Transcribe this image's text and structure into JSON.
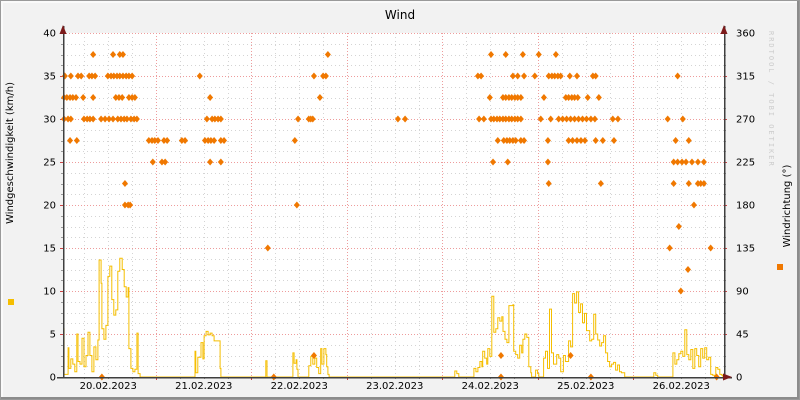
{
  "title": "Wind",
  "watermark": "RRDTOOL / TOBI OETIKER",
  "colors": {
    "background": "#f2f2f2",
    "plot_background": "#ffffff",
    "speed": "#f5be00",
    "direction": "#f07800",
    "grid_major": "#ee9c9c",
    "grid_minor": "#d4d4d4",
    "axis": "#3f3f3f",
    "arrow": "#7c1a1a",
    "tick_major": "#cc4444",
    "tick_minor": "#9a9a9a",
    "watermark_color": "#cccccc"
  },
  "chart_data": {
    "type": "step-line + scatter (dual axis)",
    "title": "Wind",
    "x_axis": {
      "unit": "time",
      "day_labels": [
        "20.02.2023",
        "21.02.2023",
        "22.02.2023",
        "23.02.2023",
        "24.02.2023",
        "25.02.2023",
        "26.02.2023"
      ],
      "hours_range": [
        0.6,
        166.7
      ],
      "minor_grid_hours": 6,
      "major_grid_hours": 24
    },
    "left_axis": {
      "label": "Windgeschwindigkeit (km/h)",
      "range": [
        0,
        40
      ],
      "ticks": [
        0,
        5,
        10,
        15,
        20,
        25,
        30,
        35,
        40
      ],
      "minor_step": 1.25
    },
    "right_axis": {
      "label": "Windrichtung (°)",
      "range": [
        0,
        360
      ],
      "ticks": [
        0,
        45,
        90,
        135,
        180,
        225,
        270,
        315,
        360
      ],
      "minor_step": 11.25
    },
    "series": [
      {
        "name": "Windgeschwindigkeit",
        "type": "step-line",
        "unit": "km/h",
        "color": "#f5be00",
        "points_hours_value": [
          [
            0.6,
            5.6
          ],
          [
            0.9,
            0.3
          ],
          [
            1.6,
            0.3
          ],
          [
            1.9,
            3.4
          ],
          [
            2.1,
            1.0
          ],
          [
            2.6,
            2.1
          ],
          [
            3.1,
            1.5
          ],
          [
            3.6,
            0.6
          ],
          [
            4.1,
            5.0
          ],
          [
            4.4,
            1.8
          ],
          [
            4.9,
            1.5
          ],
          [
            5.4,
            4.5
          ],
          [
            5.9,
            1.2
          ],
          [
            6.4,
            2.5
          ],
          [
            6.9,
            5.2
          ],
          [
            7.4,
            2.5
          ],
          [
            7.9,
            0.6
          ],
          [
            8.4,
            3.5
          ],
          [
            8.9,
            2.0
          ],
          [
            9.4,
            4.3
          ],
          [
            9.7,
            13.6
          ],
          [
            10.2,
            10.9
          ],
          [
            10.4,
            5.6
          ],
          [
            10.9,
            4.4
          ],
          [
            11.4,
            6.0
          ],
          [
            11.9,
            11.7
          ],
          [
            12.4,
            12.9
          ],
          [
            12.9,
            9.0
          ],
          [
            13.4,
            7.2
          ],
          [
            13.9,
            7.8
          ],
          [
            14.4,
            12.3
          ],
          [
            14.9,
            13.8
          ],
          [
            15.5,
            12.5
          ],
          [
            16.0,
            10.5
          ],
          [
            16.5,
            9.3
          ],
          [
            17.0,
            10.4
          ],
          [
            17.2,
            3.3
          ],
          [
            17.7,
            1.0
          ],
          [
            18.2,
            0.6
          ],
          [
            18.7,
            0.9
          ],
          [
            19.2,
            5.1
          ],
          [
            19.5,
            0.4
          ],
          [
            20.0,
            0
          ],
          [
            33.5,
            0
          ],
          [
            33.8,
            3.0
          ],
          [
            34.0,
            0.5
          ],
          [
            34.5,
            2.3
          ],
          [
            35.0,
            2.3
          ],
          [
            35.3,
            4.0
          ],
          [
            35.8,
            2.1
          ],
          [
            36.1,
            4.8
          ],
          [
            36.6,
            5.3
          ],
          [
            37.1,
            4.9
          ],
          [
            37.6,
            5.1
          ],
          [
            38.1,
            4.8
          ],
          [
            38.6,
            4.2
          ],
          [
            39.1,
            4.2
          ],
          [
            39.6,
            4.2
          ],
          [
            40.1,
            1.0
          ],
          [
            40.3,
            0
          ],
          [
            51.4,
            0
          ],
          [
            51.6,
            1.9
          ],
          [
            51.9,
            0
          ],
          [
            58.2,
            0
          ],
          [
            58.4,
            2.8
          ],
          [
            58.7,
            1.6
          ],
          [
            59.2,
            2.0
          ],
          [
            59.4,
            0.9
          ],
          [
            59.7,
            0
          ],
          [
            62.2,
            0
          ],
          [
            62.4,
            1.3
          ],
          [
            62.9,
            2.4
          ],
          [
            63.4,
            1.5
          ],
          [
            63.9,
            2.2
          ],
          [
            64.4,
            1.1
          ],
          [
            64.9,
            0.4
          ],
          [
            65.4,
            3.3
          ],
          [
            65.7,
            1.5
          ],
          [
            66.2,
            3.3
          ],
          [
            66.7,
            2.6
          ],
          [
            66.9,
            1.2
          ],
          [
            67.2,
            0.3
          ],
          [
            67.5,
            0
          ],
          [
            98.6,
            0
          ],
          [
            99.1,
            0.7
          ],
          [
            99.6,
            0.4
          ],
          [
            100.1,
            0
          ],
          [
            103.6,
            0
          ],
          [
            103.9,
            1.0
          ],
          [
            104.4,
            0.6
          ],
          [
            104.9,
            1.1
          ],
          [
            105.4,
            1.8
          ],
          [
            105.9,
            1.2
          ],
          [
            106.1,
            3.0
          ],
          [
            106.6,
            2.2
          ],
          [
            107.1,
            1.5
          ],
          [
            107.4,
            3.3
          ],
          [
            107.9,
            2.4
          ],
          [
            108.4,
            9.4
          ],
          [
            108.9,
            5.2
          ],
          [
            109.4,
            5.6
          ],
          [
            109.9,
            6.9
          ],
          [
            110.4,
            6.5
          ],
          [
            110.9,
            7.0
          ],
          [
            111.2,
            5.3
          ],
          [
            111.7,
            4.4
          ],
          [
            112.2,
            4.0
          ],
          [
            112.7,
            8.3
          ],
          [
            113.2,
            8.3
          ],
          [
            113.7,
            8.4
          ],
          [
            113.9,
            3.0
          ],
          [
            114.4,
            2.6
          ],
          [
            114.9,
            2.2
          ],
          [
            115.4,
            3.7
          ],
          [
            115.9,
            2.8
          ],
          [
            116.2,
            4.4
          ],
          [
            116.7,
            5.0
          ],
          [
            117.2,
            4.6
          ],
          [
            117.7,
            1.2
          ],
          [
            118.2,
            0.5
          ],
          [
            118.4,
            0
          ],
          [
            119.4,
            0.8
          ],
          [
            119.9,
            0.4
          ],
          [
            120.2,
            0
          ],
          [
            121.4,
            2.2
          ],
          [
            121.9,
            3.0
          ],
          [
            122.4,
            1.0
          ],
          [
            122.9,
            7.9
          ],
          [
            123.4,
            2.8
          ],
          [
            123.9,
            1.5
          ],
          [
            124.7,
            2.6
          ],
          [
            125.2,
            2.2
          ],
          [
            125.7,
            0.6
          ],
          [
            126.4,
            2.5
          ],
          [
            126.9,
            1.8
          ],
          [
            127.7,
            4.2
          ],
          [
            128.2,
            3.5
          ],
          [
            128.7,
            9.7
          ],
          [
            129.2,
            8.6
          ],
          [
            129.7,
            9.9
          ],
          [
            130.2,
            7.5
          ],
          [
            130.7,
            8.5
          ],
          [
            131.2,
            6.3
          ],
          [
            131.7,
            7.4
          ],
          [
            132.2,
            5.4
          ],
          [
            133.0,
            4.2
          ],
          [
            133.5,
            4.4
          ],
          [
            134.0,
            7.3
          ],
          [
            134.5,
            5.0
          ],
          [
            135.0,
            4.3
          ],
          [
            135.5,
            3.6
          ],
          [
            136.0,
            4.0
          ],
          [
            136.5,
            4.8
          ],
          [
            137.0,
            2.8
          ],
          [
            137.5,
            1.8
          ],
          [
            138.0,
            1.2
          ],
          [
            138.5,
            1.5
          ],
          [
            139.0,
            1.7
          ],
          [
            139.5,
            0.8
          ],
          [
            140.0,
            1.4
          ],
          [
            140.5,
            0.6
          ],
          [
            141.0,
            0.5
          ],
          [
            141.8,
            0
          ],
          [
            149.1,
            0.5
          ],
          [
            149.6,
            0.2
          ],
          [
            150.1,
            0
          ],
          [
            153.6,
            0
          ],
          [
            153.9,
            2.8
          ],
          [
            154.4,
            1.5
          ],
          [
            154.9,
            2.0
          ],
          [
            155.4,
            2.7
          ],
          [
            155.9,
            3.0
          ],
          [
            156.4,
            2.4
          ],
          [
            156.9,
            5.5
          ],
          [
            157.4,
            2.6
          ],
          [
            157.9,
            2.0
          ],
          [
            158.4,
            3.2
          ],
          [
            158.9,
            1.0
          ],
          [
            159.4,
            3.3
          ],
          [
            159.9,
            2.5
          ],
          [
            160.4,
            1.2
          ],
          [
            160.9,
            3.3
          ],
          [
            161.4,
            2.2
          ],
          [
            161.9,
            3.4
          ],
          [
            162.4,
            2.0
          ],
          [
            162.9,
            2.3
          ],
          [
            163.4,
            0.3
          ],
          [
            163.9,
            0.2
          ],
          [
            164.4,
            0
          ],
          [
            164.7,
            1.1
          ],
          [
            165.2,
            0.9
          ],
          [
            165.7,
            0.3
          ],
          [
            166.2,
            0.2
          ],
          [
            166.4,
            0.1
          ]
        ]
      },
      {
        "name": "Windrichtung",
        "type": "scatter",
        "unit": "deg",
        "color": "#f07800",
        "marker": "diamond",
        "points_by_direction": {
          "337.5": [
            8.2,
            13.2,
            14.9,
            15.7,
            67.2,
            108.2,
            111.9,
            116.2,
            120.2,
            124.5
          ],
          "315": [
            1.1,
            2.6,
            4.4,
            5.2,
            7.2,
            7.9,
            8.7,
            11.9,
            12.7,
            13.4,
            14.2,
            14.9,
            15.7,
            16.5,
            17.2,
            18.0,
            35.0,
            63.7,
            66.0,
            66.7,
            104.9,
            105.7,
            113.7,
            114.9,
            116.5,
            119.2,
            122.7,
            123.5,
            124.2,
            125.0,
            125.7,
            128.0,
            129.8,
            133.8,
            134.5,
            155.1
          ],
          "292.5": [
            0.9,
            1.6,
            2.4,
            3.1,
            3.9,
            5.7,
            8.2,
            13.9,
            14.7,
            15.5,
            17.2,
            18.0,
            18.7,
            37.6,
            65.2,
            107.9,
            111.2,
            111.9,
            112.7,
            113.4,
            114.2,
            114.9,
            115.7,
            121.5,
            127.0,
            127.7,
            128.5,
            129.2,
            130.0,
            132.5,
            135.3
          ],
          "270": [
            0.9,
            1.9,
            2.6,
            5.9,
            6.7,
            7.4,
            8.2,
            10.2,
            11.2,
            12.2,
            13.2,
            14.4,
            15.2,
            16.0,
            16.7,
            17.7,
            18.5,
            19.2,
            36.8,
            38.1,
            38.8,
            39.6,
            40.3,
            59.7,
            62.4,
            62.9,
            63.4,
            84.8,
            86.6,
            105.2,
            106.4,
            108.2,
            108.9,
            109.7,
            110.4,
            111.2,
            111.9,
            112.7,
            113.4,
            114.2,
            114.9,
            115.7,
            120.7,
            123.2,
            125.2,
            126.2,
            127.2,
            128.2,
            129.2,
            130.2,
            131.2,
            132.2,
            133.3,
            134.3,
            138.8,
            140.1,
            152.6,
            156.4
          ],
          "247.5": [
            2.4,
            4.1,
            22.2,
            23.0,
            23.7,
            24.5,
            26.0,
            26.8,
            30.5,
            31.3,
            36.3,
            37.1,
            37.8,
            38.6,
            40.3,
            41.1,
            58.9,
            109.9,
            111.4,
            112.2,
            112.9,
            113.7,
            114.4,
            115.7,
            116.5,
            122.5,
            127.7,
            128.7,
            129.8,
            130.8,
            131.8,
            134.5,
            136.3,
            139.1,
            154.6,
            157.9
          ],
          "225": [
            23.2,
            25.5,
            26.3,
            37.6,
            40.3,
            108.7,
            112.4,
            122.5,
            154.1,
            155.1,
            156.2,
            157.2,
            158.7,
            160.2,
            161.7
          ],
          "202.5": [
            16.2,
            122.7,
            135.8,
            154.1,
            157.9,
            160.2,
            160.9,
            161.7
          ],
          "180": [
            16.2,
            17.0,
            17.5,
            59.4,
            159.2
          ],
          "157.5": [
            155.4
          ],
          "135": [
            52.1,
            153.1,
            163.4
          ],
          "112.5": [
            157.7
          ],
          "90": [
            155.9
          ],
          "22.5": [
            63.7,
            110.7,
            128.2
          ],
          "0": [
            10.4,
            53.6,
            110.7,
            133.3,
            164.9
          ]
        }
      }
    ]
  }
}
